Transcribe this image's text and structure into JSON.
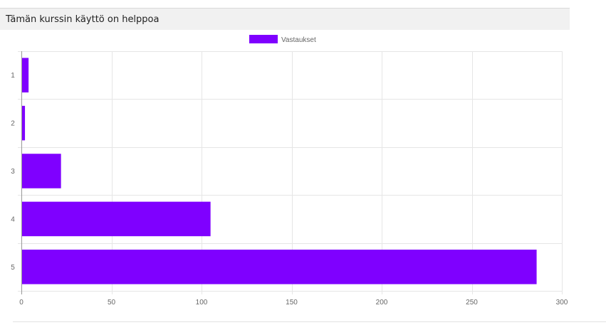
{
  "question": {
    "title": "Tämän kurssin käyttö on helppoa"
  },
  "chart_data": {
    "type": "bar",
    "orientation": "horizontal",
    "categories": [
      "1",
      "2",
      "3",
      "4",
      "5"
    ],
    "series": [
      {
        "name": "Vastaukset",
        "color": "#7f00ff",
        "values": [
          4,
          2,
          22,
          105,
          286
        ]
      }
    ],
    "xlim": [
      0,
      300
    ],
    "xticks": [
      0,
      50,
      100,
      150,
      200,
      250,
      300
    ],
    "grid": true,
    "legend_position": "top-center"
  }
}
